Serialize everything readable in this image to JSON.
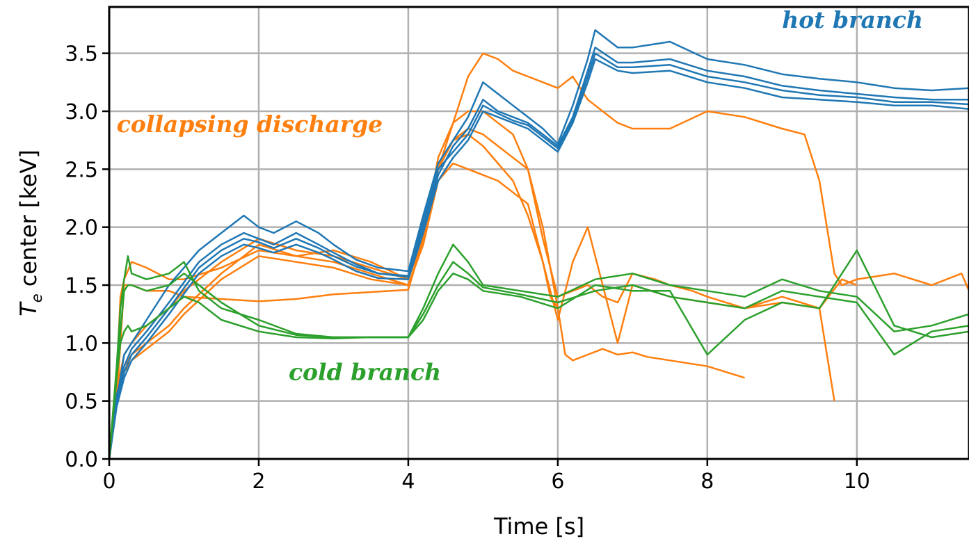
{
  "chart_data": {
    "type": "line",
    "xlabel": "Time [s]",
    "ylabel_main": "T",
    "ylabel_sub": "e",
    "ylabel_rest": " center [keV]",
    "xlim": [
      0,
      11.5
    ],
    "ylim": [
      0,
      3.9
    ],
    "xticks": [
      0,
      2,
      4,
      6,
      8,
      10
    ],
    "xtick_labels": [
      "0",
      "2",
      "4",
      "6",
      "8",
      "10"
    ],
    "yticks": [
      0.0,
      0.5,
      1.0,
      1.5,
      2.0,
      2.5,
      3.0,
      3.5
    ],
    "ytick_labels": [
      "0.0",
      "0.5",
      "1.0",
      "1.5",
      "2.0",
      "2.5",
      "3.0",
      "3.5"
    ],
    "grid": true,
    "colors": {
      "hot": "#1f77b4",
      "cold": "#2ca02c",
      "collapse": "#ff7f0e"
    },
    "annotations": [
      {
        "text": "hot branch",
        "color": "#1f77b4",
        "x": 9.0,
        "y": 3.72
      },
      {
        "text": "collapsing discharge",
        "color": "#ff7f0e",
        "x": 0.1,
        "y": 2.82
      },
      {
        "text": "cold branch",
        "color": "#2ca02c",
        "x": 2.4,
        "y": 0.68
      }
    ],
    "series": [
      {
        "group": "hot",
        "x": [
          0,
          0.1,
          0.2,
          0.3,
          0.5,
          0.8,
          1.2,
          1.5,
          1.8,
          2.0,
          2.2,
          2.5,
          2.8,
          3.0,
          3.3,
          3.6,
          4.0,
          4.2,
          4.4,
          4.6,
          4.8,
          5.0,
          5.2,
          5.4,
          5.6,
          5.8,
          6.0,
          6.2,
          6.4,
          6.5,
          6.8,
          7.0,
          7.5,
          8.0,
          8.5,
          9.0,
          9.5,
          10.0,
          10.5,
          11.0,
          11.5
        ],
        "y": [
          0,
          0.5,
          0.9,
          1.0,
          1.2,
          1.5,
          1.8,
          1.95,
          2.1,
          2.0,
          1.95,
          2.05,
          1.95,
          1.85,
          1.72,
          1.65,
          1.62,
          2.1,
          2.55,
          2.75,
          2.95,
          3.25,
          3.15,
          3.05,
          2.95,
          2.85,
          2.72,
          3.05,
          3.45,
          3.7,
          3.55,
          3.55,
          3.6,
          3.45,
          3.4,
          3.32,
          3.28,
          3.25,
          3.2,
          3.18,
          3.2
        ]
      },
      {
        "group": "hot",
        "x": [
          0,
          0.1,
          0.2,
          0.3,
          0.5,
          0.8,
          1.2,
          1.5,
          1.8,
          2.0,
          2.2,
          2.5,
          2.8,
          3.0,
          3.3,
          3.6,
          4.0,
          4.2,
          4.4,
          4.6,
          4.8,
          5.0,
          5.2,
          5.4,
          5.6,
          5.8,
          6.0,
          6.2,
          6.4,
          6.5,
          6.8,
          7.0,
          7.5,
          8.0,
          8.5,
          9.0,
          9.5,
          10.0,
          10.5,
          11.0,
          11.5
        ],
        "y": [
          0,
          0.55,
          0.8,
          0.95,
          1.1,
          1.35,
          1.7,
          1.85,
          1.95,
          1.9,
          1.85,
          1.95,
          1.85,
          1.78,
          1.68,
          1.6,
          1.58,
          2.0,
          2.45,
          2.7,
          2.85,
          3.1,
          3.0,
          2.95,
          2.9,
          2.8,
          2.7,
          2.95,
          3.35,
          3.55,
          3.42,
          3.42,
          3.45,
          3.35,
          3.3,
          3.22,
          3.18,
          3.15,
          3.12,
          3.1,
          3.1
        ]
      },
      {
        "group": "hot",
        "x": [
          0,
          0.1,
          0.2,
          0.3,
          0.5,
          0.8,
          1.2,
          1.5,
          1.8,
          2.0,
          2.2,
          2.5,
          2.8,
          3.0,
          3.3,
          3.6,
          4.0,
          4.2,
          4.4,
          4.6,
          4.8,
          5.0,
          5.2,
          5.4,
          5.6,
          5.8,
          6.0,
          6.2,
          6.4,
          6.5,
          6.8,
          7.0,
          7.5,
          8.0,
          8.5,
          9.0,
          9.5,
          10.0,
          10.5,
          11.0,
          11.5
        ],
        "y": [
          0,
          0.45,
          0.7,
          0.85,
          1.0,
          1.25,
          1.6,
          1.75,
          1.85,
          1.82,
          1.78,
          1.85,
          1.78,
          1.72,
          1.62,
          1.56,
          1.55,
          1.95,
          2.4,
          2.6,
          2.75,
          3.0,
          2.95,
          2.9,
          2.85,
          2.75,
          2.65,
          2.9,
          3.25,
          3.45,
          3.35,
          3.33,
          3.35,
          3.25,
          3.2,
          3.12,
          3.1,
          3.08,
          3.05,
          3.05,
          3.02
        ]
      },
      {
        "group": "hot",
        "x": [
          0,
          0.1,
          0.2,
          0.3,
          0.5,
          0.8,
          1.2,
          1.5,
          1.8,
          2.0,
          2.2,
          2.5,
          2.8,
          3.0,
          3.3,
          3.6,
          4.0,
          4.2,
          4.4,
          4.6,
          4.8,
          5.0,
          5.2,
          5.4,
          5.6,
          5.8,
          6.0,
          6.2,
          6.4,
          6.5,
          6.8,
          7.0,
          7.5,
          8.0,
          8.5,
          9.0,
          9.5,
          10.0,
          10.5,
          11.0,
          11.5
        ],
        "y": [
          0,
          0.5,
          0.75,
          0.9,
          1.05,
          1.3,
          1.65,
          1.8,
          1.9,
          1.87,
          1.82,
          1.9,
          1.82,
          1.75,
          1.66,
          1.6,
          1.57,
          2.05,
          2.5,
          2.65,
          2.8,
          3.05,
          2.98,
          2.92,
          2.88,
          2.78,
          2.68,
          2.92,
          3.3,
          3.5,
          3.38,
          3.38,
          3.4,
          3.3,
          3.25,
          3.18,
          3.14,
          3.12,
          3.08,
          3.08,
          3.06
        ]
      },
      {
        "group": "cold",
        "x": [
          0,
          0.1,
          0.15,
          0.2,
          0.25,
          0.3,
          0.5,
          0.8,
          1.0,
          1.2,
          1.5,
          2.0,
          2.5,
          3.0,
          3.5,
          4.0,
          4.2,
          4.4,
          4.6,
          4.8,
          5.0,
          5.5,
          6.0,
          6.5,
          7.0,
          7.5,
          8.0,
          8.5,
          9.0,
          9.5,
          10.0,
          10.5,
          11.0,
          11.5
        ],
        "y": [
          0,
          0.8,
          1.3,
          1.55,
          1.75,
          1.6,
          1.55,
          1.6,
          1.7,
          1.45,
          1.3,
          1.2,
          1.08,
          1.05,
          1.05,
          1.05,
          1.3,
          1.6,
          1.85,
          1.7,
          1.5,
          1.45,
          1.4,
          1.55,
          1.6,
          1.5,
          1.45,
          1.4,
          1.55,
          1.45,
          1.4,
          1.1,
          1.15,
          1.25
        ]
      },
      {
        "group": "cold",
        "x": [
          0,
          0.1,
          0.15,
          0.2,
          0.25,
          0.3,
          0.5,
          0.8,
          1.0,
          1.2,
          1.5,
          2.0,
          2.5,
          3.0,
          3.5,
          4.0,
          4.2,
          4.4,
          4.6,
          4.8,
          5.0,
          5.5,
          6.0,
          6.5,
          7.0,
          7.5,
          8.0,
          8.5,
          9.0,
          9.5,
          10.0,
          10.5,
          11.0,
          11.5
        ],
        "y": [
          0,
          0.7,
          1.0,
          1.1,
          1.15,
          1.1,
          1.15,
          1.3,
          1.4,
          1.35,
          1.2,
          1.1,
          1.05,
          1.04,
          1.05,
          1.05,
          1.2,
          1.45,
          1.6,
          1.55,
          1.45,
          1.4,
          1.3,
          1.5,
          1.45,
          1.45,
          0.9,
          1.2,
          1.35,
          1.3,
          1.8,
          1.15,
          1.05,
          1.1
        ]
      },
      {
        "group": "cold",
        "x": [
          0,
          0.1,
          0.15,
          0.2,
          0.25,
          0.3,
          0.5,
          0.8,
          1.0,
          1.2,
          1.5,
          2.0,
          2.5,
          3.0,
          3.5,
          4.0,
          4.2,
          4.4,
          4.6,
          4.8,
          5.0,
          5.5,
          6.0,
          6.5,
          7.0,
          7.5,
          8.0,
          8.5,
          9.0,
          9.5,
          10.0,
          10.5,
          11.0,
          11.5
        ],
        "y": [
          0,
          0.75,
          1.1,
          1.45,
          1.5,
          1.5,
          1.45,
          1.5,
          1.6,
          1.5,
          1.35,
          1.15,
          1.07,
          1.05,
          1.05,
          1.05,
          1.25,
          1.5,
          1.7,
          1.6,
          1.48,
          1.42,
          1.35,
          1.45,
          1.5,
          1.4,
          1.35,
          1.3,
          1.45,
          1.4,
          1.35,
          0.9,
          1.1,
          1.15
        ]
      },
      {
        "group": "collapse",
        "x": [
          0,
          0.1,
          0.15,
          0.2,
          0.3,
          0.5,
          0.8,
          1.0,
          1.5,
          2.0,
          2.5,
          3.0,
          3.5,
          4.0,
          4.2,
          4.4,
          4.6,
          4.8,
          5.0,
          5.2,
          5.4,
          5.6,
          5.8,
          6.0,
          6.2,
          6.4,
          6.6,
          6.8,
          7.0,
          7.5,
          8.0,
          8.5,
          9.0,
          9.3,
          9.5,
          9.7,
          9.8,
          10.0,
          10.5,
          11.0,
          11.4,
          11.5
        ],
        "y": [
          0,
          0.7,
          1.4,
          1.55,
          1.7,
          1.65,
          1.55,
          1.55,
          1.65,
          1.8,
          1.75,
          1.8,
          1.7,
          1.55,
          1.95,
          2.5,
          2.9,
          3.3,
          3.5,
          3.45,
          3.35,
          3.3,
          3.25,
          3.2,
          3.3,
          3.1,
          3.0,
          2.9,
          2.85,
          2.85,
          3.0,
          2.95,
          2.85,
          2.8,
          2.4,
          1.6,
          1.5,
          1.55,
          1.6,
          1.5,
          1.6,
          1.45
        ]
      },
      {
        "group": "collapse",
        "x": [
          0,
          0.1,
          0.2,
          0.3,
          0.5,
          0.8,
          1.0,
          1.5,
          2.0,
          2.5,
          3.0,
          3.5,
          4.0,
          4.2,
          4.4,
          4.6,
          4.8,
          5.0,
          5.2,
          5.4,
          5.6,
          5.8,
          6.0,
          6.2,
          6.4,
          6.6,
          6.8,
          7.0,
          7.3,
          7.5,
          7.8,
          8.0,
          8.5,
          9.0,
          9.5,
          9.8,
          10.0
        ],
        "y": [
          0,
          0.6,
          0.9,
          1.0,
          1.15,
          1.3,
          1.45,
          1.7,
          1.9,
          1.8,
          1.75,
          1.65,
          1.55,
          1.9,
          2.6,
          2.9,
          3.0,
          3.0,
          2.9,
          2.8,
          2.5,
          1.9,
          1.4,
          1.45,
          1.5,
          1.4,
          1.35,
          1.6,
          1.55,
          1.5,
          1.45,
          1.4,
          1.3,
          1.35,
          1.3,
          1.55,
          1.5
        ]
      },
      {
        "group": "collapse",
        "x": [
          0,
          0.1,
          0.2,
          0.3,
          0.5,
          0.8,
          1.0,
          1.5,
          2.0,
          2.5,
          3.0,
          3.5,
          4.0,
          4.2,
          4.4,
          4.6,
          4.8,
          5.0,
          5.2,
          5.4,
          5.6,
          5.8,
          6.0,
          6.1,
          6.2,
          6.4,
          6.6,
          6.8,
          7.0,
          7.2,
          7.5,
          8.0,
          8.5
        ],
        "y": [
          0,
          0.55,
          0.8,
          0.9,
          1.0,
          1.15,
          1.3,
          1.6,
          1.85,
          1.75,
          1.7,
          1.6,
          1.5,
          1.85,
          2.5,
          2.75,
          2.85,
          2.8,
          2.7,
          2.6,
          2.5,
          2.0,
          1.3,
          0.9,
          0.85,
          0.9,
          0.95,
          0.9,
          0.92,
          0.88,
          0.85,
          0.8,
          0.7
        ]
      },
      {
        "group": "collapse",
        "x": [
          0,
          0.1,
          0.2,
          0.3,
          0.5,
          0.8,
          1.0,
          1.5,
          2.0,
          2.5,
          3.0,
          3.5,
          4.0,
          4.2,
          4.4,
          4.6,
          4.8,
          5.0,
          5.2,
          5.4,
          5.6,
          5.8,
          6.0,
          6.2,
          6.4,
          6.6,
          6.8,
          7.0,
          7.5,
          8.0,
          8.5,
          9.0,
          9.5,
          9.7
        ],
        "y": [
          0,
          0.5,
          0.75,
          0.85,
          0.95,
          1.1,
          1.25,
          1.55,
          1.75,
          1.7,
          1.65,
          1.55,
          1.5,
          1.85,
          2.4,
          2.55,
          2.5,
          2.45,
          2.4,
          2.3,
          2.2,
          1.7,
          1.2,
          1.7,
          2.0,
          1.5,
          1.0,
          1.5,
          1.4,
          1.35,
          1.3,
          1.4,
          1.3,
          0.5
        ]
      },
      {
        "group": "collapse",
        "x": [
          0,
          0.1,
          0.2,
          0.3,
          0.5,
          0.8,
          1.0,
          1.5,
          2.0,
          2.5,
          3.0,
          3.5,
          4.0,
          4.2,
          4.4,
          4.6,
          4.8,
          5.0,
          5.2,
          5.4,
          5.6,
          5.8,
          5.9,
          6.0
        ],
        "y": [
          0,
          0.5,
          1.5,
          1.5,
          1.45,
          1.45,
          1.4,
          1.38,
          1.36,
          1.38,
          1.42,
          1.44,
          1.46,
          1.9,
          2.5,
          2.75,
          2.8,
          2.7,
          2.55,
          2.4,
          2.1,
          1.7,
          1.4,
          1.3
        ]
      }
    ]
  }
}
